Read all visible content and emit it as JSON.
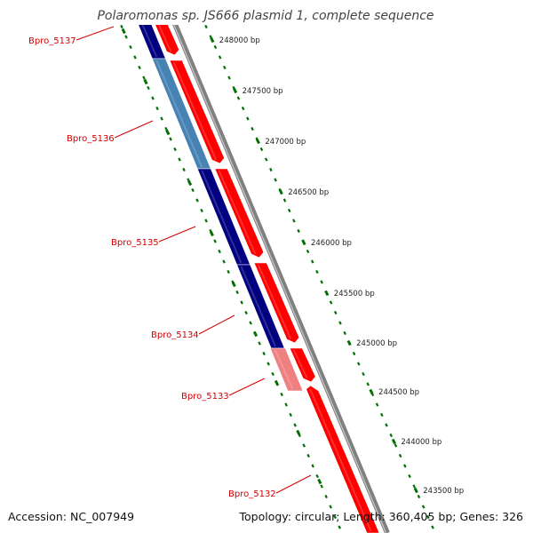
{
  "title": "Polaromonas sp. JS666 plasmid 1, complete sequence",
  "footer": {
    "accession": "Accession: NC_007949",
    "summary": "Topology: circular; Length: 360,405 bp; Genes: 326"
  },
  "colors": {
    "backbone": "#808080",
    "reverse_strand": "#000080",
    "reverse_strand_highlight": "#4682b4",
    "forward_strand": "#ff0000",
    "forward_strand_highlight": "#f08080",
    "label": "#d40000",
    "ticks": "#007000"
  },
  "genes": [
    {
      "name": "Bpro_5137",
      "strand": "reverse"
    },
    {
      "name": "Bpro_5136",
      "strand": "reverse",
      "highlight": true
    },
    {
      "name": "Bpro_5135",
      "strand": "reverse"
    },
    {
      "name": "Bpro_5134",
      "strand": "reverse"
    },
    {
      "name": "Bpro_5133",
      "strand": "reverse",
      "highlight": true
    },
    {
      "name": "Bpro_5132",
      "strand": "forward"
    }
  ],
  "tick_labels": [
    "248000 bp",
    "247500 bp",
    "247000 bp",
    "246500 bp",
    "246000 bp",
    "245500 bp",
    "245000 bp",
    "244500 bp",
    "244000 bp",
    "243500 bp"
  ]
}
